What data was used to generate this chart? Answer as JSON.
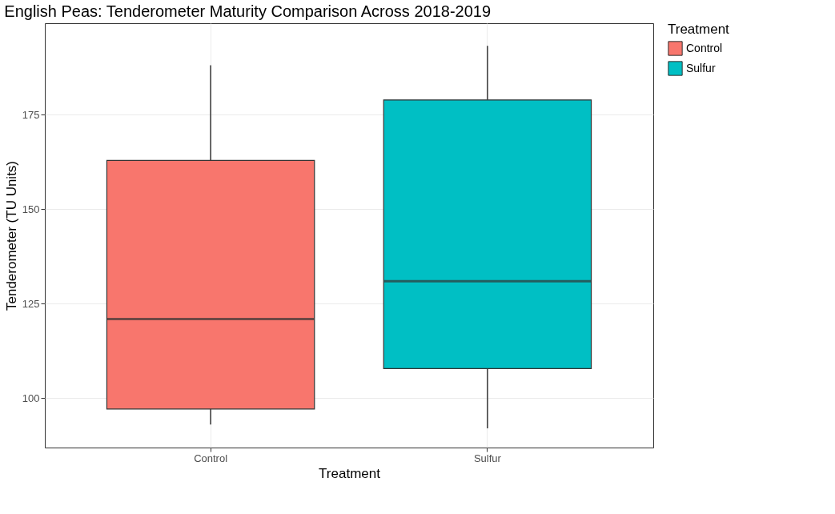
{
  "chart_data": {
    "type": "box",
    "title": "English Peas: Tenderometer Maturity Comparison Across 2018-2019",
    "xlabel": "Treatment",
    "ylabel": "Tenderometer (TU Units)",
    "legend_title": "Treatment",
    "categories": [
      "Control",
      "Sulfur"
    ],
    "series": [
      {
        "name": "Control",
        "color": "#f8766d",
        "boxes": [
          {
            "low": 93.0,
            "q1": 97.1,
            "median": 120.9,
            "q3": 162.9,
            "high": 188.1
          },
          null
        ]
      },
      {
        "name": "Sulfur",
        "color": "#00bfc4",
        "boxes": [
          null,
          {
            "low": 92.0,
            "q1": 107.8,
            "median": 130.9,
            "q3": 178.9,
            "high": 193.2
          }
        ]
      }
    ],
    "ylim": [
      86.9,
      199.2
    ],
    "yticks": [
      100,
      125,
      150,
      175
    ],
    "grid": true,
    "legend": "right"
  }
}
